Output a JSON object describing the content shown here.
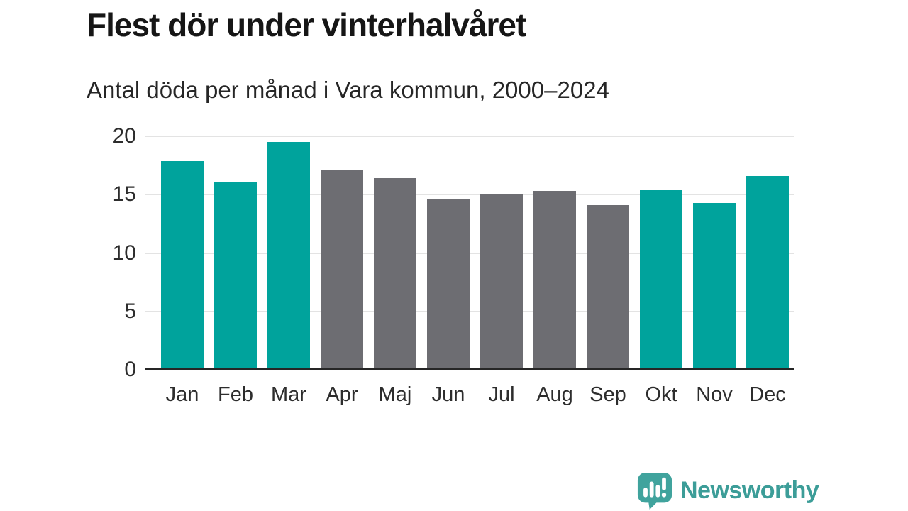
{
  "header": {
    "title": "Flest dör under vinterhalvåret",
    "subtitle": "Antal döda per månad i Vara kommun, 2000–2024"
  },
  "chart_data": {
    "type": "bar",
    "title": "Flest dör under vinterhalvåret",
    "subtitle": "Antal döda per månad i Vara kommun, 2000–2024",
    "categories": [
      "Jan",
      "Feb",
      "Mar",
      "Apr",
      "Maj",
      "Jun",
      "Jul",
      "Aug",
      "Sep",
      "Okt",
      "Nov",
      "Dec"
    ],
    "values": [
      17.9,
      16.1,
      19.5,
      17.1,
      16.4,
      14.6,
      15.0,
      15.3,
      14.1,
      15.4,
      14.3,
      16.6
    ],
    "bar_colors": [
      "winter",
      "winter",
      "winter",
      "summer",
      "summer",
      "summer",
      "summer",
      "summer",
      "summer",
      "winter",
      "winter",
      "winter"
    ],
    "palette": {
      "winter": "#00a39c",
      "summer": "#6d6d72"
    },
    "xlabel": "",
    "ylabel": "",
    "ylim": [
      0,
      20
    ],
    "yticks": [
      0,
      5,
      10,
      15,
      20
    ],
    "grid": true,
    "legend": "none"
  },
  "branding": {
    "logo_text": "Newsworthy",
    "logo_color": "#3c9d98",
    "logo_icon": "speech-bubble-bar-chart-icon",
    "logo_icon_color": "#40a39d"
  }
}
